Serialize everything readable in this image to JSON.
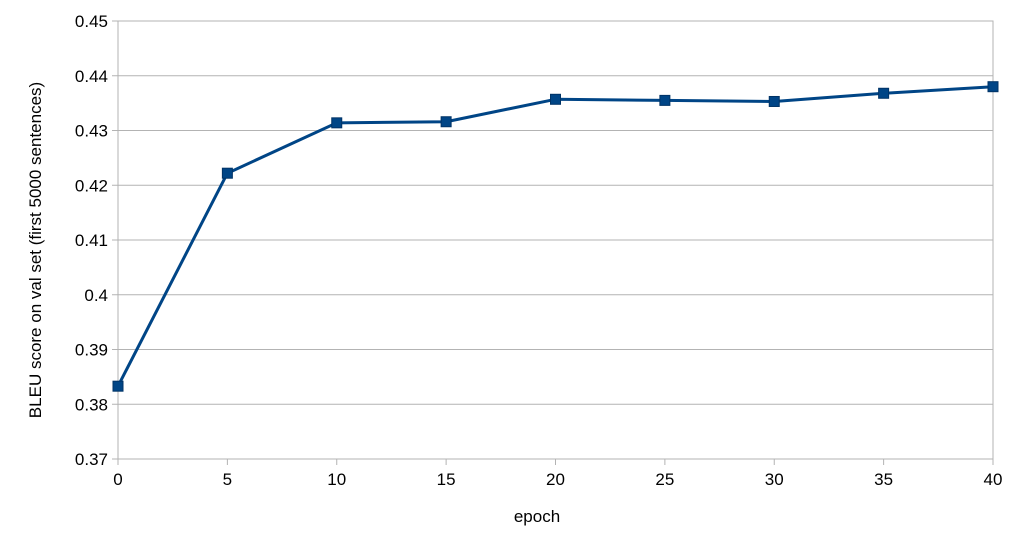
{
  "chart_data": {
    "type": "line",
    "title": "",
    "xlabel": "epoch",
    "ylabel": "BLEU score on val set (first 5000 sentences)",
    "xlim": [
      0,
      40
    ],
    "ylim": [
      0.37,
      0.45
    ],
    "xticks": [
      0,
      5,
      10,
      15,
      20,
      25,
      30,
      35,
      40
    ],
    "yticks": [
      0.37,
      0.38,
      0.39,
      0.4,
      0.41,
      0.42,
      0.43,
      0.44,
      0.45
    ],
    "ytick_labels": [
      "0.37",
      "0.38",
      "0.39",
      "0.4",
      "0.41",
      "0.42",
      "0.43",
      "0.44",
      "0.45"
    ],
    "grid": true,
    "legend": "none",
    "color": "#004586",
    "series": [
      {
        "x": [
          0,
          5,
          10,
          15,
          20,
          25,
          30,
          35,
          40
        ],
        "values": [
          0.3833,
          0.4222,
          0.4314,
          0.4316,
          0.4357,
          0.4355,
          0.4353,
          0.4368,
          0.438
        ]
      }
    ]
  }
}
